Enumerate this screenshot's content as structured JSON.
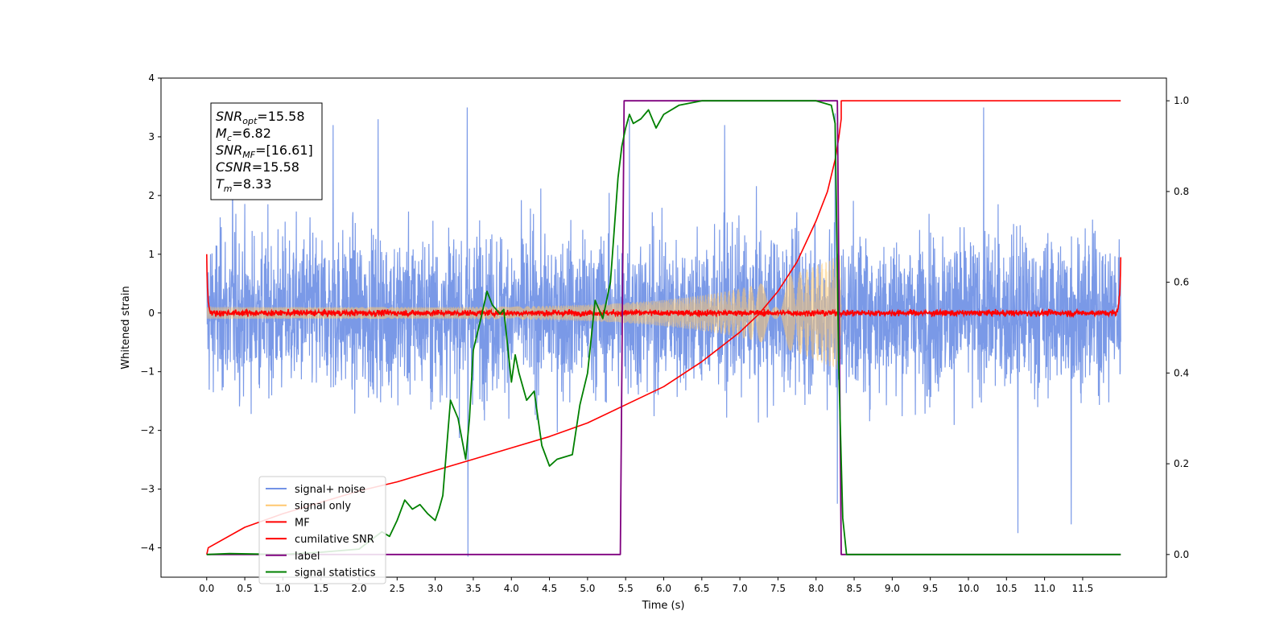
{
  "chart_data": {
    "type": "line",
    "xlabel": "Time (s)",
    "ylabel": "Whitened strain",
    "xlim": [
      -0.6,
      12.6
    ],
    "ylim": [
      -4.5,
      4.0
    ],
    "y2lim": [
      -0.05,
      1.05
    ],
    "x_ticks": [
      0.0,
      0.5,
      1.0,
      1.5,
      2.0,
      2.5,
      3.0,
      3.5,
      4.0,
      4.5,
      5.0,
      5.5,
      6.0,
      6.5,
      7.0,
      7.5,
      8.0,
      8.5,
      9.0,
      9.5,
      10.0,
      10.5,
      11.0,
      11.5
    ],
    "x_tick_labels": [
      "0.0",
      "0.5",
      "1.0",
      "1.5",
      "2.0",
      "2.5",
      "3.0",
      "3.5",
      "4.0",
      "4.5",
      "5.0",
      "5.5",
      "6.0",
      "6.5",
      "7.0",
      "7.5",
      "8.0",
      "8.5",
      "9.0",
      "9.5",
      "10.0",
      "10.5",
      "11.0",
      "11.5"
    ],
    "y_ticks": [
      4,
      3,
      2,
      1,
      0,
      -1,
      -2,
      -3,
      -4
    ],
    "y_tick_labels": [
      "4",
      "3",
      "2",
      "1",
      "0",
      "−1",
      "−2",
      "−3",
      "−4"
    ],
    "y2_ticks": [
      1.0,
      0.8,
      0.6,
      0.4,
      0.2,
      0.0
    ],
    "y2_tick_labels": [
      "1.0",
      "0.8",
      "0.6",
      "0.4",
      "0.2",
      "0.0"
    ],
    "info_box": {
      "snr_opt_main": "SNR",
      "snr_opt_sub": "opt",
      "snr_opt_val": "=15.58",
      "mc_main": "M",
      "mc_sub": "c",
      "mc_val": "=6.82",
      "snr_mf_main": "SNR",
      "snr_mf_sub": "MF",
      "snr_mf_val": "=[16.61]",
      "csnr_main": "CSNR",
      "csnr_val": "=15.58",
      "tm_main": "T",
      "tm_sub": "m",
      "tm_val": "=8.33"
    },
    "legend_position": "lower-left",
    "grid": false,
    "series": [
      {
        "name": "signal+ noise",
        "color": "#7393e6",
        "axis": "left",
        "kind": "noise",
        "x_range": [
          0.0,
          12.0
        ],
        "amplitude": 1.0,
        "peaks": [
          [
            0.34,
            2.9
          ],
          [
            1.66,
            3.2
          ],
          [
            2.25,
            3.3
          ],
          [
            3.42,
            3.5
          ],
          [
            3.43,
            -4.15
          ],
          [
            5.55,
            3.3
          ],
          [
            6.8,
            3.2
          ],
          [
            8.25,
            3.4
          ],
          [
            8.28,
            -3.25
          ],
          [
            10.2,
            3.5
          ],
          [
            10.65,
            -3.75
          ],
          [
            11.35,
            -3.6
          ]
        ]
      },
      {
        "name": "signal only",
        "color": "#ffc870",
        "axis": "left",
        "kind": "chirp",
        "x_range": [
          0.0,
          8.33
        ],
        "amplitude_start": 0.1,
        "amplitude_end": 1.0
      },
      {
        "name": "MF",
        "color": "#ff0000",
        "axis": "left",
        "kind": "matched_filter",
        "x_range": [
          0.0,
          12.0
        ],
        "baseline": 0.0,
        "edge_value": 1.0
      },
      {
        "name": "cumilative SNR",
        "color": "#ff0000",
        "axis": "right",
        "x": [
          0.0,
          0.02,
          0.5,
          1.0,
          1.5,
          2.0,
          2.5,
          3.0,
          3.5,
          4.0,
          4.5,
          5.0,
          5.5,
          6.0,
          6.5,
          7.0,
          7.25,
          7.5,
          7.75,
          8.0,
          8.15,
          8.25,
          8.3,
          8.33,
          8.33,
          12.0
        ],
        "y": [
          0.0,
          0.015,
          0.06,
          0.09,
          0.115,
          0.14,
          0.16,
          0.185,
          0.21,
          0.235,
          0.26,
          0.29,
          0.33,
          0.37,
          0.425,
          0.49,
          0.53,
          0.58,
          0.645,
          0.735,
          0.8,
          0.87,
          0.92,
          0.96,
          1.0,
          1.0
        ]
      },
      {
        "name": "label",
        "color": "#7f007f",
        "axis": "right",
        "x": [
          0.0,
          5.43,
          5.48,
          8.28,
          8.33,
          12.0
        ],
        "y": [
          0.0,
          0.0,
          1.0,
          1.0,
          0.0,
          0.0
        ]
      },
      {
        "name": "signal statistics",
        "color": "#008000",
        "axis": "right",
        "x": [
          0.0,
          0.3,
          1.0,
          1.5,
          2.0,
          2.3,
          2.4,
          2.5,
          2.6,
          2.7,
          2.8,
          2.9,
          3.0,
          3.05,
          3.1,
          3.2,
          3.3,
          3.4,
          3.45,
          3.5,
          3.6,
          3.68,
          3.75,
          3.85,
          3.9,
          4.0,
          4.05,
          4.1,
          4.2,
          4.3,
          4.4,
          4.5,
          4.6,
          4.7,
          4.8,
          4.9,
          5.0,
          5.1,
          5.2,
          5.3,
          5.4,
          5.45,
          5.5,
          5.55,
          5.6,
          5.7,
          5.8,
          5.9,
          6.0,
          6.2,
          6.5,
          7.0,
          7.5,
          7.8,
          8.0,
          8.2,
          8.25,
          8.3,
          8.35,
          8.4,
          12.0
        ],
        "y": [
          0.0,
          0.002,
          0.0,
          0.005,
          0.012,
          0.05,
          0.04,
          0.075,
          0.12,
          0.1,
          0.11,
          0.09,
          0.075,
          0.1,
          0.13,
          0.34,
          0.3,
          0.21,
          0.3,
          0.45,
          0.52,
          0.58,
          0.55,
          0.53,
          0.54,
          0.38,
          0.44,
          0.4,
          0.34,
          0.36,
          0.24,
          0.195,
          0.21,
          0.215,
          0.22,
          0.33,
          0.4,
          0.56,
          0.52,
          0.6,
          0.83,
          0.9,
          0.94,
          0.97,
          0.95,
          0.96,
          0.98,
          0.94,
          0.97,
          0.99,
          1.0,
          1.0,
          1.0,
          1.0,
          1.0,
          0.99,
          0.95,
          0.4,
          0.08,
          0.0,
          0.0
        ]
      }
    ]
  }
}
